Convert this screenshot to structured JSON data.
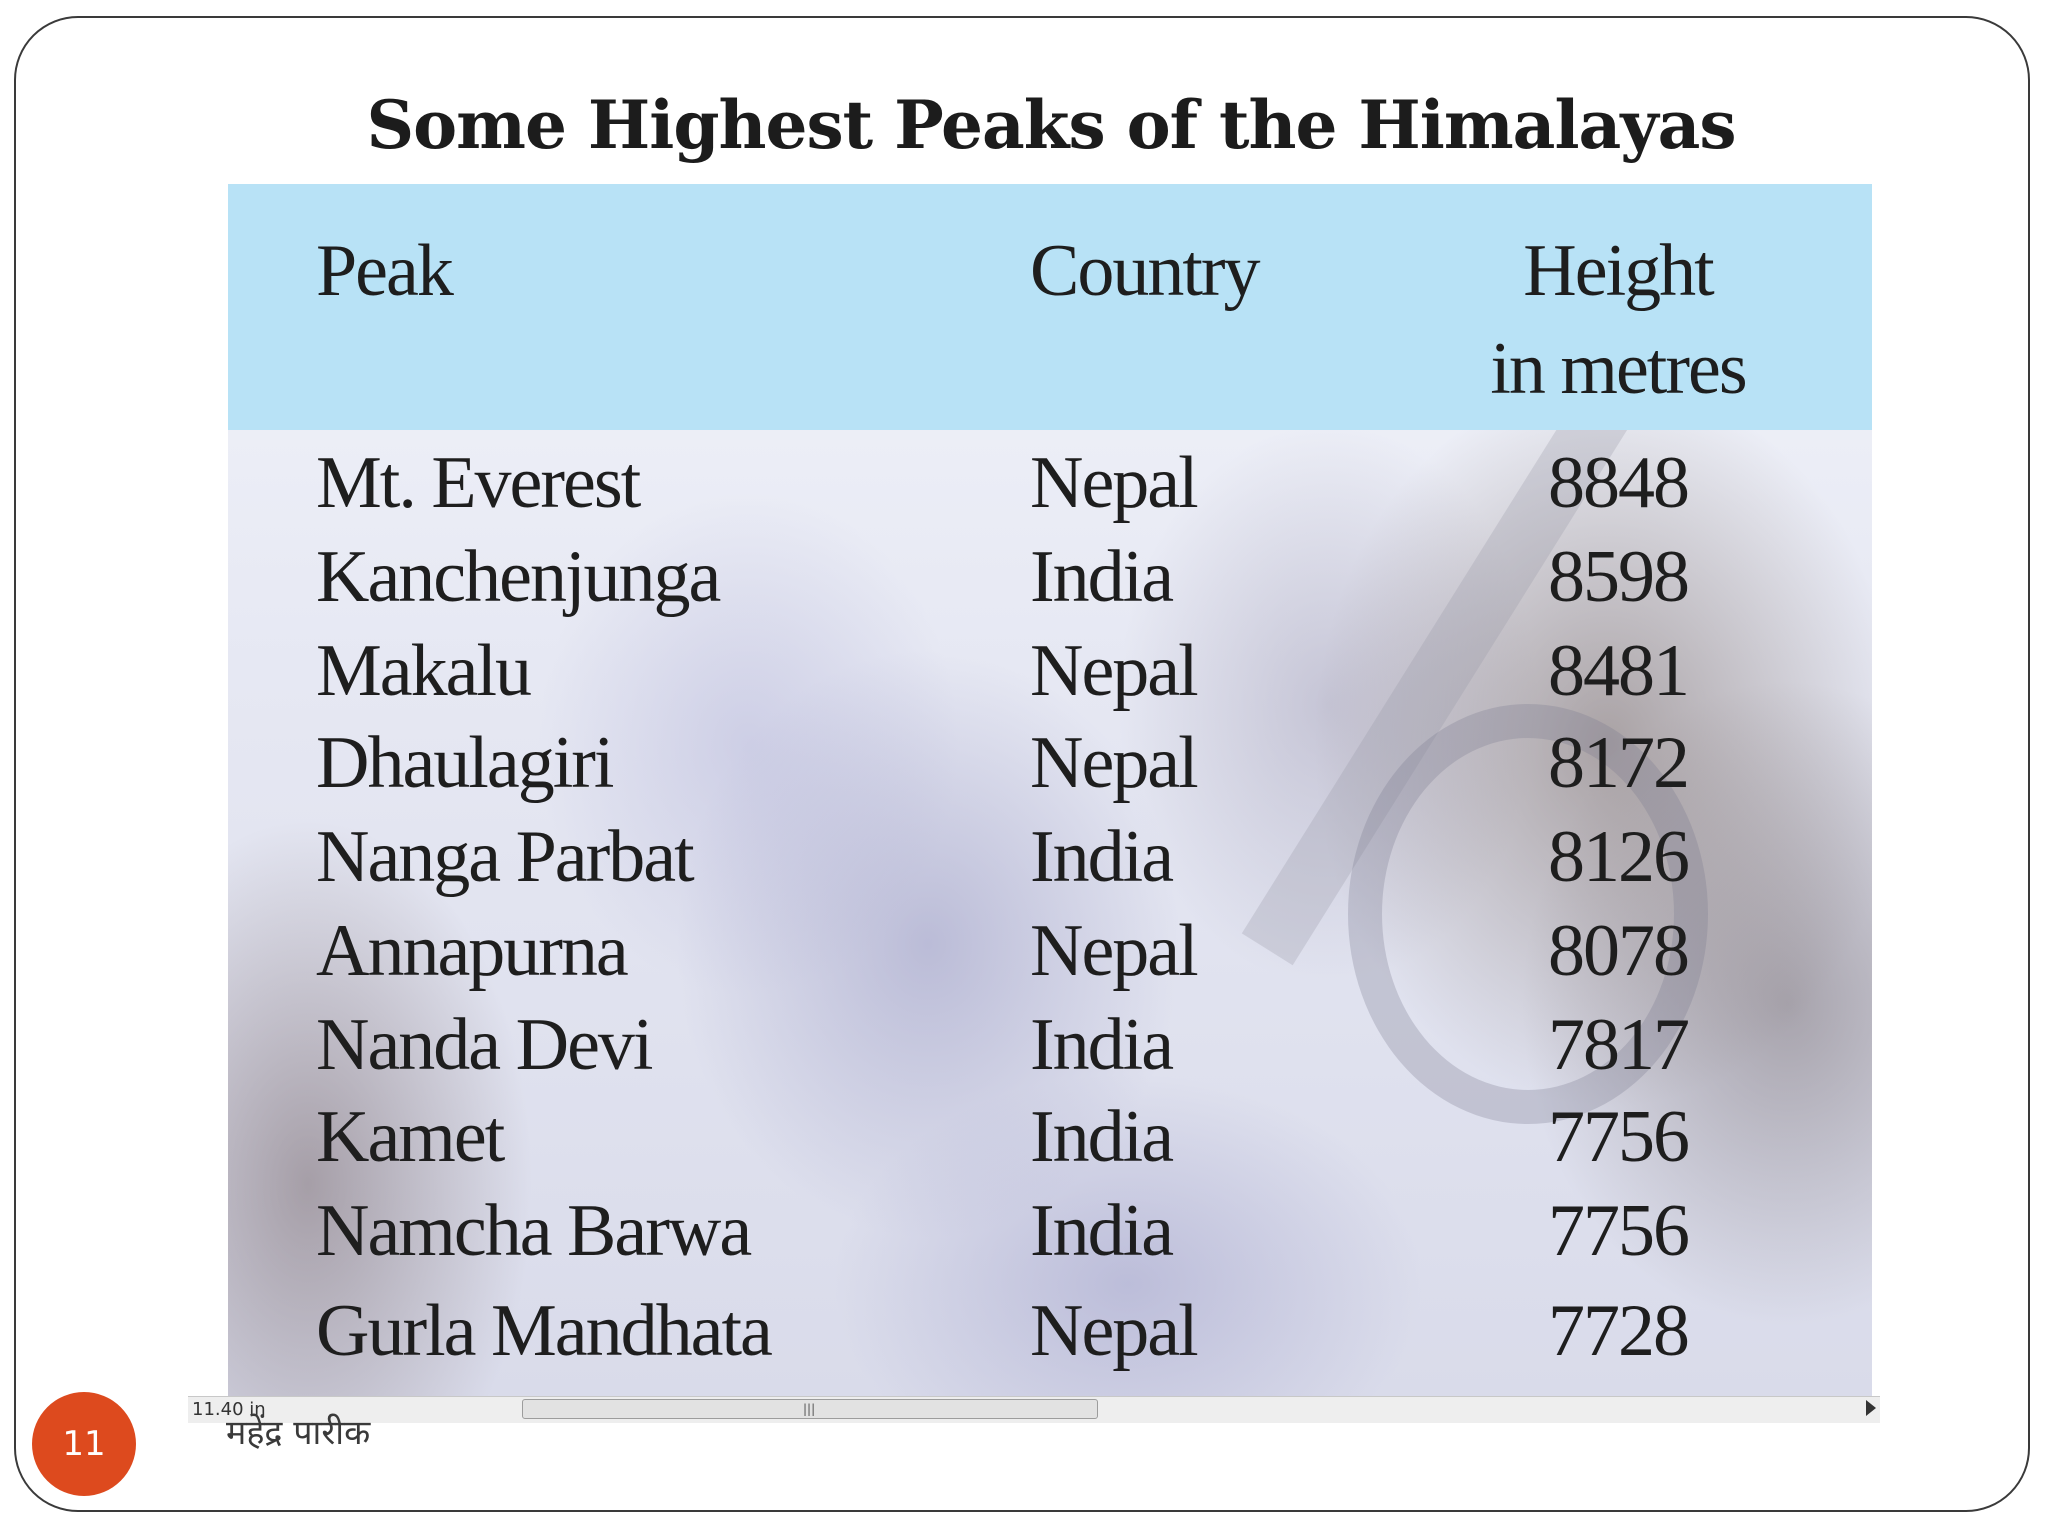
{
  "slide": {
    "title": "Some Highest Peaks of the Himalayas",
    "page_number": "11",
    "author": "महेंद्र  पारीक"
  },
  "table": {
    "headers": {
      "peak": "Peak",
      "country": "Country",
      "height_line1": "Height",
      "height_line2": "in metres"
    },
    "rows": [
      {
        "peak": "Mt. Everest",
        "country": "Nepal",
        "height": "8848"
      },
      {
        "peak": "Kanchenjunga",
        "country": "India",
        "height": "8598"
      },
      {
        "peak": "Makalu",
        "country": "Nepal",
        "height": "8481"
      },
      {
        "peak": "Dhaulagiri",
        "country": "Nepal",
        "height": "8172"
      },
      {
        "peak": "Nanga Parbat",
        "country": "India",
        "height": "8126"
      },
      {
        "peak": "Annapurna",
        "country": "Nepal",
        "height": "8078"
      },
      {
        "peak": "Nanda Devi",
        "country": "India",
        "height": "7817"
      },
      {
        "peak": "Kamet",
        "country": "India",
        "height": "7756"
      },
      {
        "peak": "Namcha Barwa",
        "country": "India",
        "height": "7756"
      },
      {
        "peak": "Gurla Mandhata",
        "country": "Nepal",
        "height": "7728"
      }
    ]
  },
  "scrollbar": {
    "left_text": "11.40 in"
  },
  "colors": {
    "header_band": "#b8e2f6",
    "badge": "#dd4a1e"
  }
}
